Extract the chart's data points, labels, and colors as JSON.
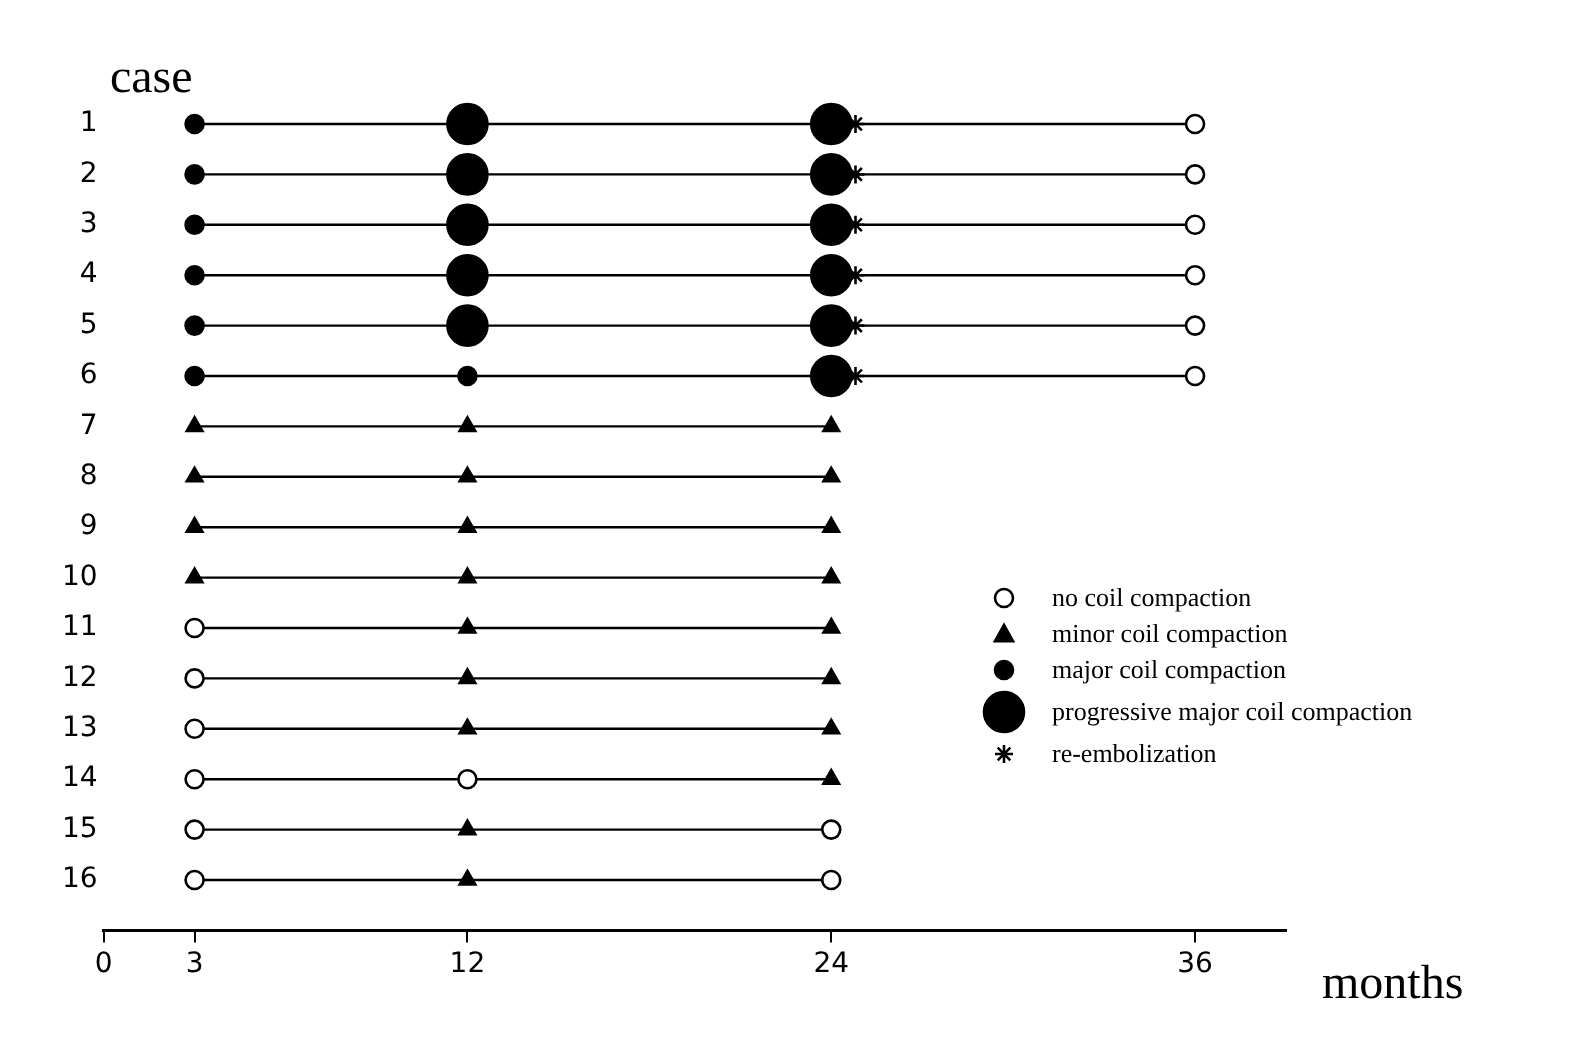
{
  "chart_data": {
    "type": "scatter",
    "xlabel": "months",
    "ylabel": "case",
    "xlim": [
      0,
      39
    ],
    "xticks": [
      0,
      3,
      12,
      24,
      36
    ],
    "ylim": [
      17,
      1
    ],
    "yticks": [
      1,
      2,
      3,
      4,
      5,
      6,
      7,
      8,
      9,
      10,
      11,
      12,
      13,
      14,
      15,
      16
    ],
    "grid": false,
    "legend": "right",
    "series": [
      {
        "type": "line",
        "color": "#000000",
        "marker": "none",
        "x": [
          3,
          36
        ],
        "values": [
          1,
          1
        ]
      },
      {
        "type": "line",
        "color": "#000000",
        "marker": "none",
        "x": [
          3,
          36
        ],
        "values": [
          2,
          2
        ]
      },
      {
        "type": "line",
        "color": "#000000",
        "marker": "none",
        "x": [
          3,
          36
        ],
        "values": [
          3,
          3
        ]
      },
      {
        "type": "line",
        "color": "#000000",
        "marker": "none",
        "x": [
          3,
          36
        ],
        "values": [
          4,
          4
        ]
      },
      {
        "type": "line",
        "color": "#000000",
        "marker": "none",
        "x": [
          3,
          36
        ],
        "values": [
          5,
          5
        ]
      },
      {
        "type": "line",
        "color": "#000000",
        "marker": "none",
        "x": [
          3,
          36
        ],
        "values": [
          6,
          6
        ]
      },
      {
        "type": "line",
        "color": "#000000",
        "marker": "none",
        "x": [
          3,
          24
        ],
        "values": [
          7,
          7
        ]
      },
      {
        "type": "line",
        "color": "#000000",
        "marker": "none",
        "x": [
          3,
          24
        ],
        "values": [
          8,
          8
        ]
      },
      {
        "type": "line",
        "color": "#000000",
        "marker": "none",
        "x": [
          3,
          24
        ],
        "values": [
          9,
          9
        ]
      },
      {
        "type": "line",
        "color": "#000000",
        "marker": "none",
        "x": [
          3,
          24
        ],
        "values": [
          10,
          10
        ]
      },
      {
        "type": "line",
        "color": "#000000",
        "marker": "none",
        "x": [
          3,
          24
        ],
        "values": [
          11,
          11
        ]
      },
      {
        "type": "line",
        "color": "#000000",
        "marker": "none",
        "x": [
          3,
          24
        ],
        "values": [
          12,
          12
        ]
      },
      {
        "type": "line",
        "color": "#000000",
        "marker": "none",
        "x": [
          3,
          24
        ],
        "values": [
          13,
          13
        ]
      },
      {
        "type": "line",
        "color": "#000000",
        "marker": "none",
        "x": [
          3,
          24
        ],
        "values": [
          14,
          14
        ]
      },
      {
        "type": "line",
        "color": "#000000",
        "marker": "none",
        "x": [
          3,
          24
        ],
        "values": [
          15,
          15
        ]
      },
      {
        "type": "line",
        "color": "#000000",
        "marker": "none",
        "x": [
          3,
          24
        ],
        "values": [
          16,
          16
        ]
      },
      {
        "type": "scatter",
        "name": "no coil compaction",
        "color": "#ffffff",
        "marker": "circle",
        "x": [
          36,
          36,
          36,
          36,
          36,
          36,
          3,
          3,
          3,
          3,
          12,
          3,
          3,
          24,
          24
        ],
        "values": [
          1,
          2,
          3,
          4,
          5,
          6,
          11,
          12,
          13,
          14,
          14,
          15,
          16,
          15,
          16
        ]
      },
      {
        "type": "scatter",
        "name": "minor coil compaction",
        "color": "#000000",
        "marker": "triangle",
        "x": [
          3,
          12,
          24,
          3,
          12,
          24,
          3,
          12,
          24,
          3,
          12,
          24,
          12,
          24,
          12,
          24,
          12,
          24,
          24,
          12,
          12
        ],
        "values": [
          7,
          7,
          7,
          8,
          8,
          8,
          9,
          9,
          9,
          10,
          10,
          10,
          11,
          11,
          12,
          12,
          13,
          13,
          14,
          15,
          16
        ]
      },
      {
        "type": "scatter",
        "name": "major coil compaction",
        "color": "#000000",
        "marker": "circle",
        "x": [
          3,
          3,
          3,
          3,
          3,
          3,
          12
        ],
        "values": [
          1,
          2,
          3,
          4,
          5,
          6,
          6
        ]
      },
      {
        "type": "bubble",
        "name": "progressive major coil compaction",
        "color": "#000000",
        "marker": "circle",
        "x": [
          12,
          12,
          12,
          12,
          12,
          24,
          24,
          24,
          24,
          24,
          24
        ],
        "values": [
          1,
          2,
          3,
          4,
          5,
          1,
          2,
          3,
          4,
          5,
          6
        ],
        "sizes": [
          1,
          1,
          1,
          1,
          1,
          1,
          1,
          1,
          1,
          1,
          1
        ]
      },
      {
        "type": "scatter",
        "name": "re-embolization",
        "color": "#000000",
        "marker": "cross",
        "x": [
          24.8,
          24.8,
          24.8,
          24.8,
          24.8,
          24.8
        ],
        "values": [
          1,
          2,
          3,
          4,
          5,
          6
        ]
      }
    ]
  }
}
